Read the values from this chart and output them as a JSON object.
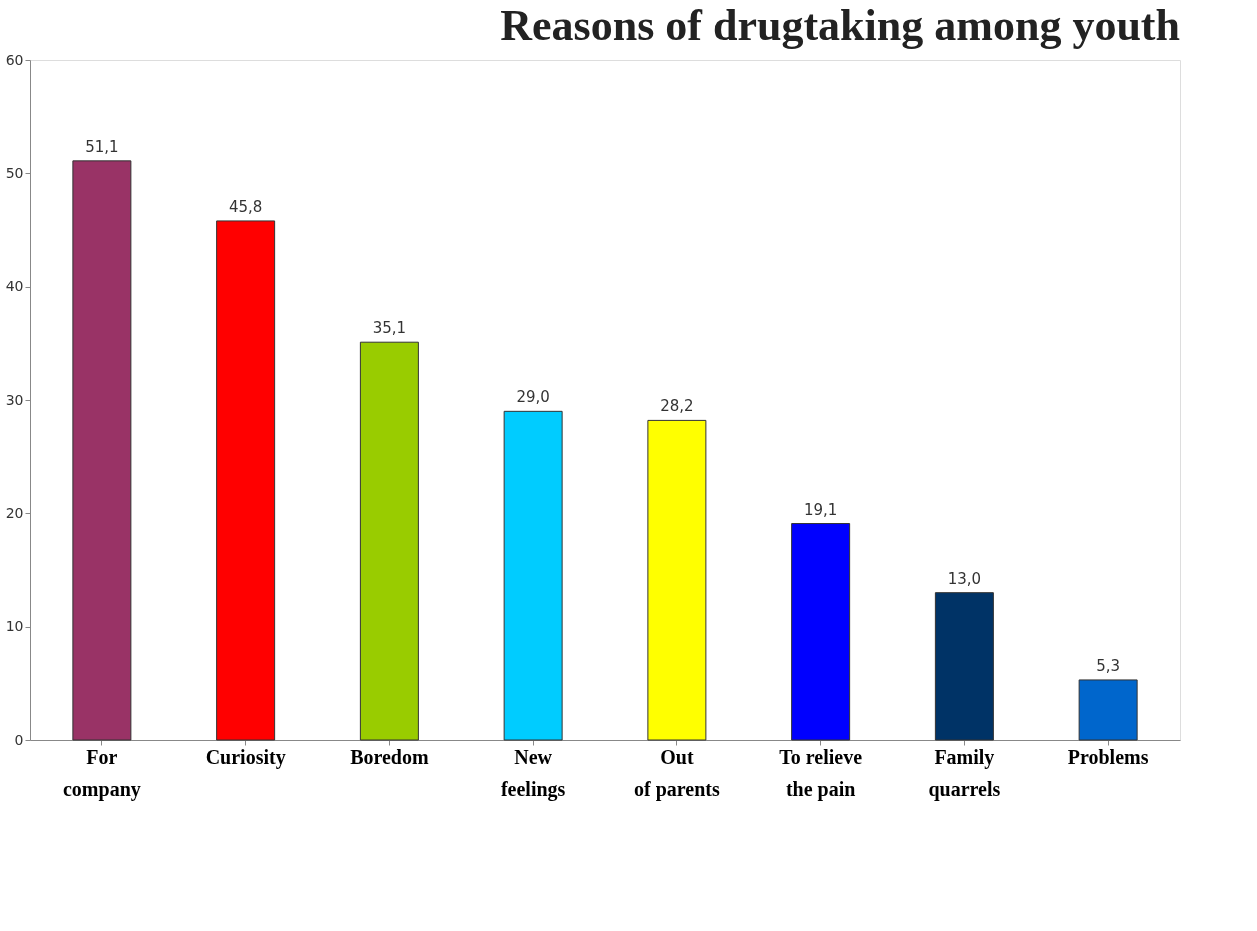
{
  "chart_data": {
    "type": "bar",
    "title": "Reasons of drugtaking among youth",
    "categories": [
      "For\ncompany",
      "Curiosity",
      "Boredom",
      "New\nfeelings",
      "Out\nof parents",
      "To relieve\nthe pain",
      "Family\nquarrels",
      "Problems"
    ],
    "values": [
      51.1,
      45.8,
      35.1,
      29.0,
      28.2,
      19.1,
      13.0,
      5.3
    ],
    "colors": [
      "#993366",
      "#ff0000",
      "#99cc00",
      "#00ccff",
      "#ffff00",
      "#0000ff",
      "#003366",
      "#0066cc"
    ],
    "value_labels": [
      "51,1",
      "45,8",
      "35,1",
      "29,0",
      "28,2",
      "19,1",
      "13,0",
      "5,3"
    ],
    "ylim": [
      0,
      60
    ],
    "yticks": [
      0,
      10,
      20,
      30,
      40,
      50,
      60
    ],
    "grid": false,
    "legend": false
  }
}
